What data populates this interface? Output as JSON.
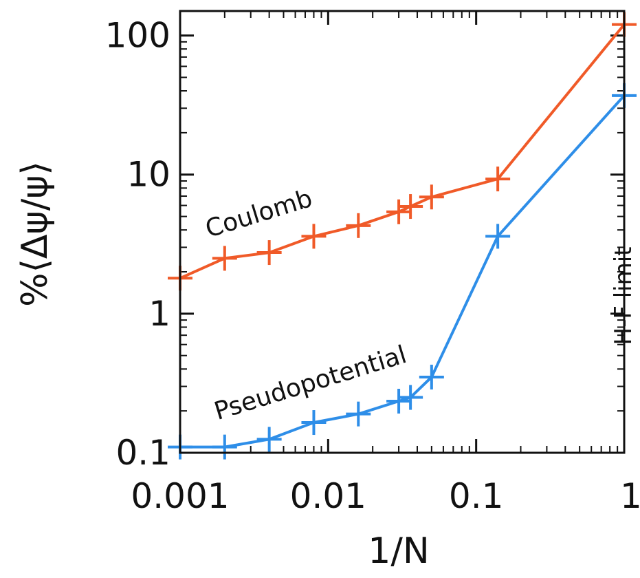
{
  "chart_data": {
    "type": "line",
    "xscale": "log",
    "yscale": "log",
    "xlim": [
      0.001,
      1
    ],
    "ylim": [
      0.1,
      150
    ],
    "xlabel": "1/N",
    "ylabel": "%⟨Δψ/ψ⟩",
    "xticks": [
      {
        "value": 0.001,
        "label": "0.001"
      },
      {
        "value": 0.01,
        "label": "0.01"
      },
      {
        "value": 0.1,
        "label": "0.1"
      },
      {
        "value": 1,
        "label": "1"
      }
    ],
    "yticks": [
      {
        "value": 0.1,
        "label": "0.1"
      },
      {
        "value": 1,
        "label": "1"
      },
      {
        "value": 10,
        "label": "10"
      },
      {
        "value": 100,
        "label": "100"
      }
    ],
    "grid": false,
    "legend": "none",
    "series": [
      {
        "name": "Coulomb",
        "color": "#f05a28",
        "x": [
          0.001,
          0.002,
          0.004,
          0.008,
          0.016,
          0.03,
          0.036,
          0.05,
          0.14,
          1
        ],
        "y": [
          1.8,
          2.5,
          2.75,
          3.6,
          4.3,
          5.4,
          5.9,
          6.9,
          9.3,
          120
        ],
        "marker": "plus"
      },
      {
        "name": "Pseudopotential",
        "color": "#2e8ee8",
        "x": [
          0.001,
          0.002,
          0.004,
          0.008,
          0.016,
          0.03,
          0.036,
          0.05,
          0.14,
          1
        ],
        "y": [
          0.11,
          0.11,
          0.125,
          0.165,
          0.19,
          0.235,
          0.25,
          0.35,
          3.6,
          37
        ],
        "marker": "plus"
      }
    ],
    "annotations": [
      {
        "text": "Coulomb"
      },
      {
        "text": "Pseudopotential"
      },
      {
        "text": "H-F limit"
      }
    ]
  }
}
